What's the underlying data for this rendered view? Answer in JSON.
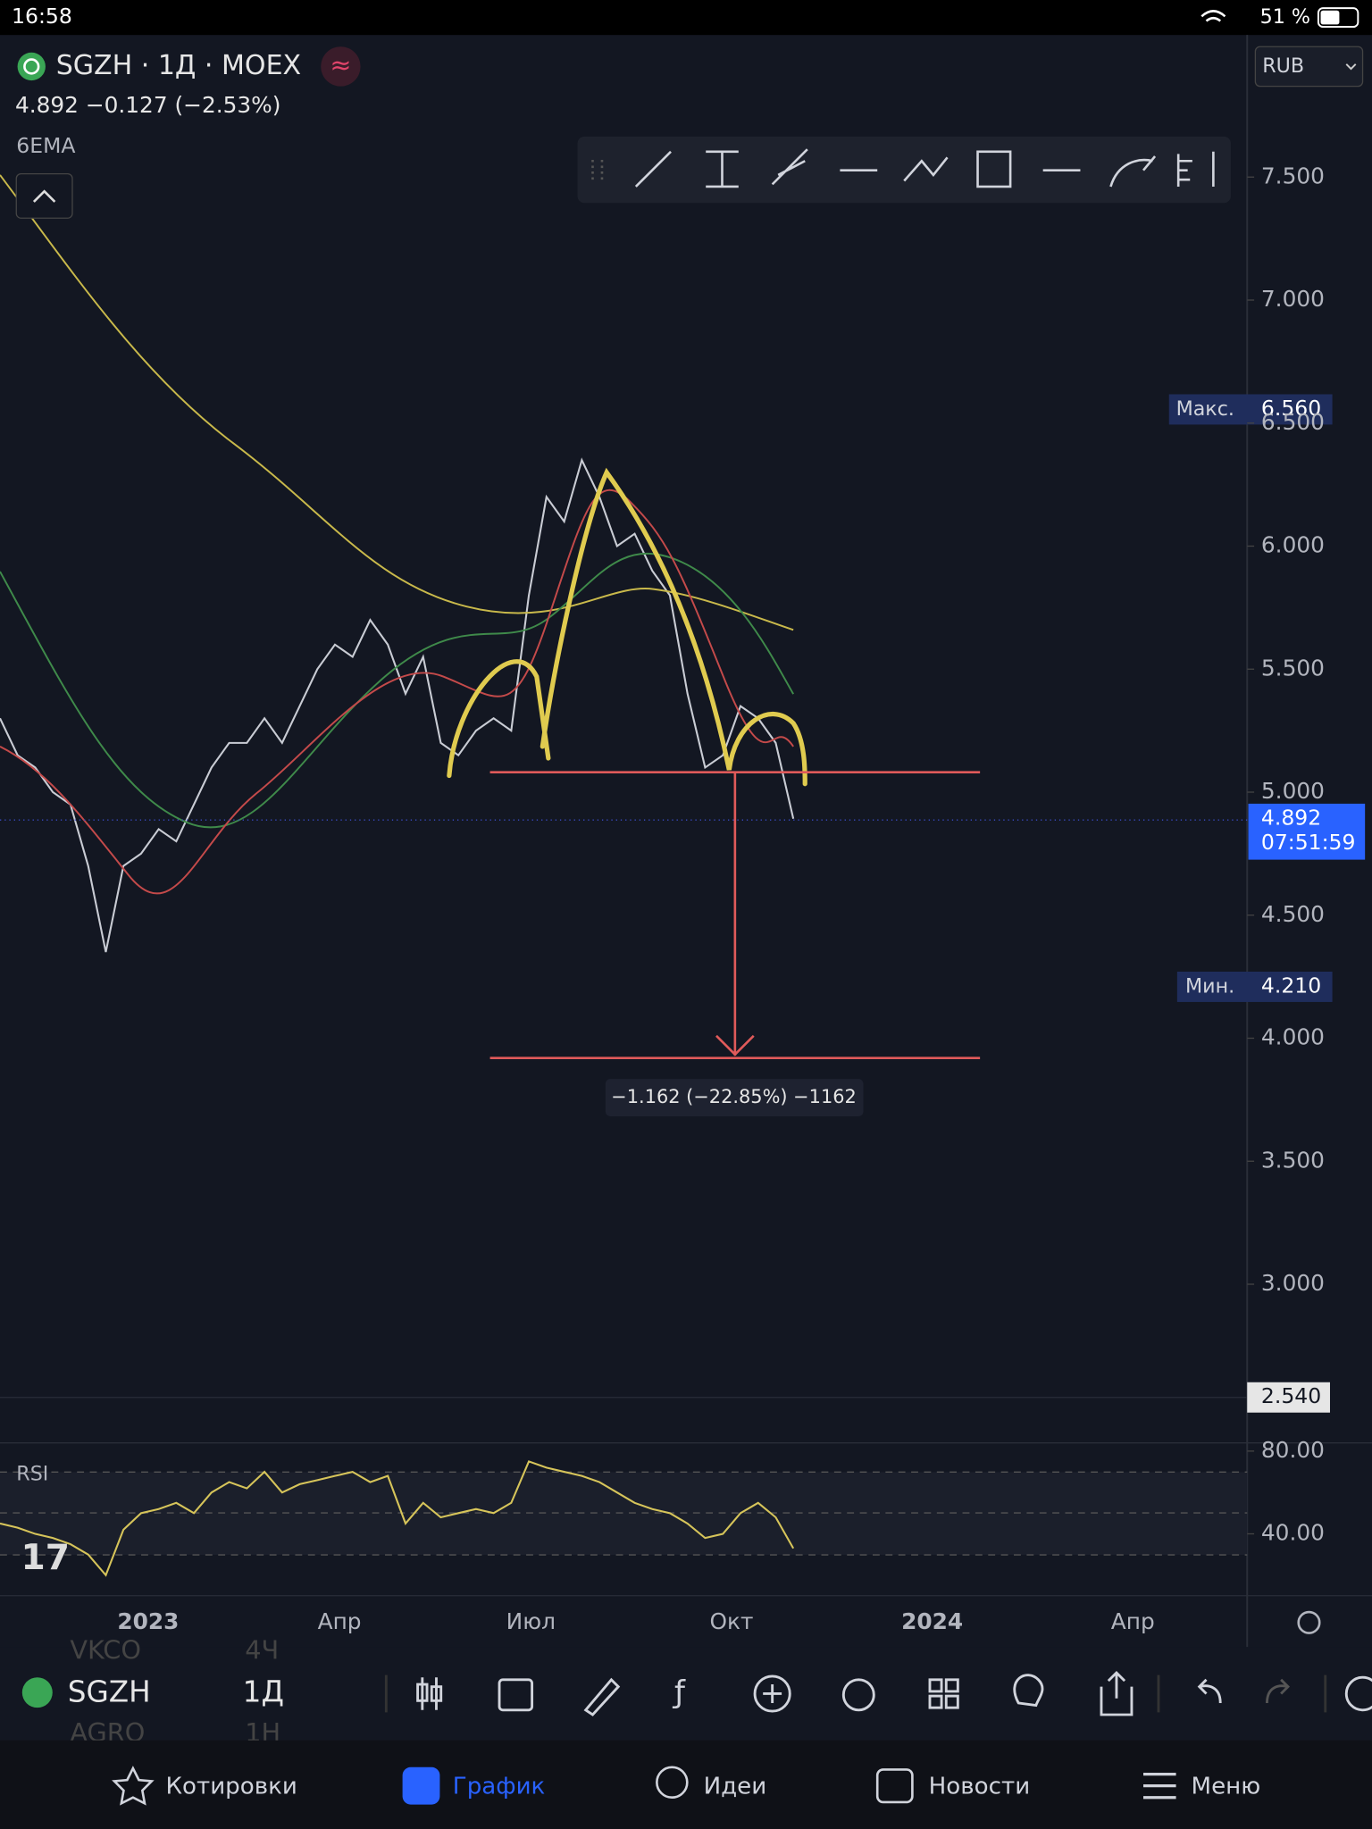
{
  "status_bar": {
    "time": "16:58",
    "battery": "51 %"
  },
  "header": {
    "symbol": "SGZH · 1Д · MOEX",
    "quote": "4.892  −0.127 (−2.53%)",
    "indicator": "6EMA"
  },
  "currency": "RUB",
  "price_labels": {
    "max_label": "Макс.",
    "max": "6.560",
    "min_label": "Мин.",
    "min": "4.210",
    "last": "4.892",
    "countdown": "07:51:59",
    "bottom": "2.540"
  },
  "measure": "−1.162 (−22.85%) −1162",
  "rsi_label": "RSI",
  "time_axis": [
    "2023",
    "Апр",
    "Июл",
    "Окт",
    "2024",
    "Апр"
  ],
  "bottom_bar": {
    "symbol": "SGZH",
    "interval": "1Д",
    "faded_above": [
      "VKCO",
      "4Ч"
    ],
    "faded_below": [
      "AGRO",
      "1Н"
    ]
  },
  "nav": [
    "Котировки",
    "График",
    "Идеи",
    "Новости",
    "Меню"
  ],
  "chart_data": [
    {
      "type": "line",
      "color": "#c9ccd4",
      "values": [
        5.3,
        5.15,
        5.1,
        5.0,
        4.95,
        4.7,
        4.35,
        4.7,
        4.75,
        4.85,
        4.8,
        4.95,
        5.1,
        5.2,
        5.2,
        5.3,
        5.2,
        5.35,
        5.5,
        5.6,
        5.55,
        5.7,
        5.6,
        5.4,
        5.55,
        5.2,
        5.15,
        5.25,
        5.3,
        5.25,
        5.8,
        6.2,
        6.1,
        6.35,
        6.2,
        6.0,
        6.05,
        5.9,
        5.8,
        5.4,
        5.1,
        5.15,
        5.35,
        5.3,
        5.2,
        4.892
      ],
      "ylim": [
        2.54,
        8.03
      ],
      "yticks": [
        {
          "value": 3,
          "label": "3.000"
        },
        {
          "value": 3.5,
          "label": "3.500"
        },
        {
          "value": 4,
          "label": "4.000"
        },
        {
          "value": 4.5,
          "label": "4.500"
        },
        {
          "value": 5,
          "label": "5.000"
        },
        {
          "value": 5.5,
          "label": "5.500"
        },
        {
          "value": 6,
          "label": "6.000"
        },
        {
          "value": 6.5,
          "label": "6.500"
        },
        {
          "value": 7,
          "label": "7.000"
        },
        {
          "value": 7.5,
          "label": "7.500"
        }
      ]
    },
    {
      "type": "line",
      "color": "#d6c45a",
      "values": [
        45,
        43,
        40,
        38,
        35,
        30,
        20,
        42,
        50,
        52,
        55,
        50,
        60,
        65,
        62,
        70,
        60,
        64,
        66,
        68,
        70,
        65,
        68,
        45,
        55,
        48,
        50,
        52,
        50,
        55,
        75,
        72,
        70,
        68,
        65,
        60,
        55,
        52,
        50,
        45,
        38,
        40,
        50,
        55,
        48,
        33
      ],
      "ylim": [
        10.1,
        83.4
      ],
      "yticks": [
        {
          "value": 40,
          "label": "40.00"
        },
        {
          "value": 80,
          "label": "80.00"
        }
      ]
    }
  ]
}
